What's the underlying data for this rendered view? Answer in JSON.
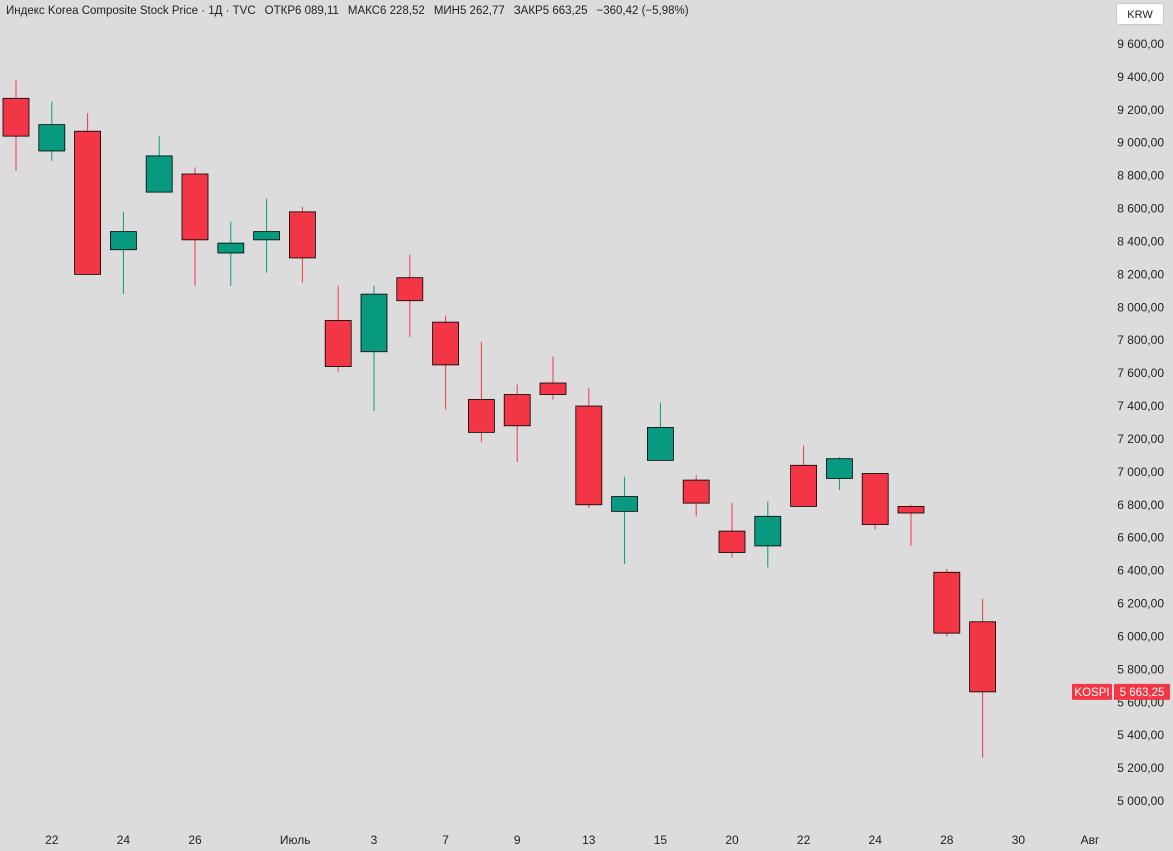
{
  "header": {
    "title": "Индекс Korea Composite Stock Price · 1Д · TVC",
    "open_label": "ОТКР",
    "open_value": "6 089,11",
    "high_label": "МАКС",
    "high_value": "6 228,52",
    "low_label": "МИН",
    "low_value": "5 262,77",
    "close_label": "ЗАКР",
    "close_value": "5 663,25",
    "change": "−360,42 (−5,98%)"
  },
  "currency_button": "KRW",
  "price_badge": {
    "symbol": "KOSPI",
    "value": "5 663,25",
    "price": 5663.25,
    "color": "#f23645"
  },
  "colors": {
    "up": "#089981",
    "down": "#f23645",
    "background": "#dcdcdc"
  },
  "chart_data": {
    "type": "candlestick",
    "ylim": [
      4950,
      9700
    ],
    "y_ticks": [
      5000,
      5200,
      5400,
      5600,
      5800,
      6000,
      6200,
      6400,
      6600,
      6800,
      7000,
      7200,
      7400,
      7600,
      7800,
      8000,
      8200,
      8400,
      8600,
      8800,
      9000,
      9200,
      9400,
      9600
    ],
    "y_tick_labels": [
      "5 000,00",
      "5 200,00",
      "5 400,00",
      "5 600,00",
      "5 800,00",
      "6 000,00",
      "6 200,00",
      "6 400,00",
      "6 600,00",
      "6 800,00",
      "7 000,00",
      "7 200,00",
      "7 400,00",
      "7 600,00",
      "7 800,00",
      "8 000,00",
      "8 200,00",
      "8 400,00",
      "8 600,00",
      "8 800,00",
      "9 000,00",
      "9 200,00",
      "9 400,00",
      "9 600,00"
    ],
    "x_ticks": [
      {
        "label": "22",
        "slot": 1
      },
      {
        "label": "24",
        "slot": 3
      },
      {
        "label": "26",
        "slot": 5
      },
      {
        "label": "Июль",
        "slot": 7.8
      },
      {
        "label": "3",
        "slot": 10
      },
      {
        "label": "7",
        "slot": 12
      },
      {
        "label": "9",
        "slot": 14
      },
      {
        "label": "13",
        "slot": 16
      },
      {
        "label": "15",
        "slot": 18
      },
      {
        "label": "20",
        "slot": 20
      },
      {
        "label": "22",
        "slot": 22
      },
      {
        "label": "24",
        "slot": 24
      },
      {
        "label": "28",
        "slot": 26
      },
      {
        "label": "30",
        "slot": 28
      },
      {
        "label": "Авг",
        "slot": 30
      }
    ],
    "candles": [
      {
        "open": 9270,
        "high": 9380,
        "low": 8830,
        "close": 9040
      },
      {
        "open": 8950,
        "high": 9250,
        "low": 8890,
        "close": 9110
      },
      {
        "open": 9070,
        "high": 9180,
        "low": 8200,
        "close": 8200
      },
      {
        "open": 8350,
        "high": 8580,
        "low": 8080,
        "close": 8460
      },
      {
        "open": 8700,
        "high": 9040,
        "low": 8700,
        "close": 8920
      },
      {
        "open": 8810,
        "high": 8850,
        "low": 8130,
        "close": 8410
      },
      {
        "open": 8330,
        "high": 8520,
        "low": 8130,
        "close": 8390
      },
      {
        "open": 8410,
        "high": 8660,
        "low": 8210,
        "close": 8460
      },
      {
        "open": 8580,
        "high": 8610,
        "low": 8150,
        "close": 8300
      },
      {
        "open": 7920,
        "high": 8130,
        "low": 7610,
        "close": 7640
      },
      {
        "open": 7730,
        "high": 8130,
        "low": 7370,
        "close": 8080
      },
      {
        "open": 8180,
        "high": 8320,
        "low": 7820,
        "close": 8040
      },
      {
        "open": 7910,
        "high": 7950,
        "low": 7380,
        "close": 7650
      },
      {
        "open": 7440,
        "high": 7790,
        "low": 7180,
        "close": 7240
      },
      {
        "open": 7470,
        "high": 7530,
        "low": 7060,
        "close": 7280
      },
      {
        "open": 7540,
        "high": 7700,
        "low": 7440,
        "close": 7470
      },
      {
        "open": 7400,
        "high": 7510,
        "low": 6780,
        "close": 6800
      },
      {
        "open": 6760,
        "high": 6970,
        "low": 6440,
        "close": 6850
      },
      {
        "open": 7070,
        "high": 7420,
        "low": 7070,
        "close": 7270
      },
      {
        "open": 6950,
        "high": 6980,
        "low": 6730,
        "close": 6810
      },
      {
        "open": 6640,
        "high": 6810,
        "low": 6480,
        "close": 6510
      },
      {
        "open": 6550,
        "high": 6820,
        "low": 6420,
        "close": 6730
      },
      {
        "open": 7040,
        "high": 7160,
        "low": 6790,
        "close": 6790
      },
      {
        "open": 6960,
        "high": 7090,
        "low": 6890,
        "close": 7080
      },
      {
        "open": 6990,
        "high": 6990,
        "low": 6650,
        "close": 6680
      },
      {
        "open": 6790,
        "high": 6800,
        "low": 6550,
        "close": 6750
      },
      {
        "open": 6390,
        "high": 6410,
        "low": 6000,
        "close": 6020
      },
      {
        "open": 6089.11,
        "high": 6228.52,
        "low": 5262.77,
        "close": 5663.25
      }
    ]
  }
}
